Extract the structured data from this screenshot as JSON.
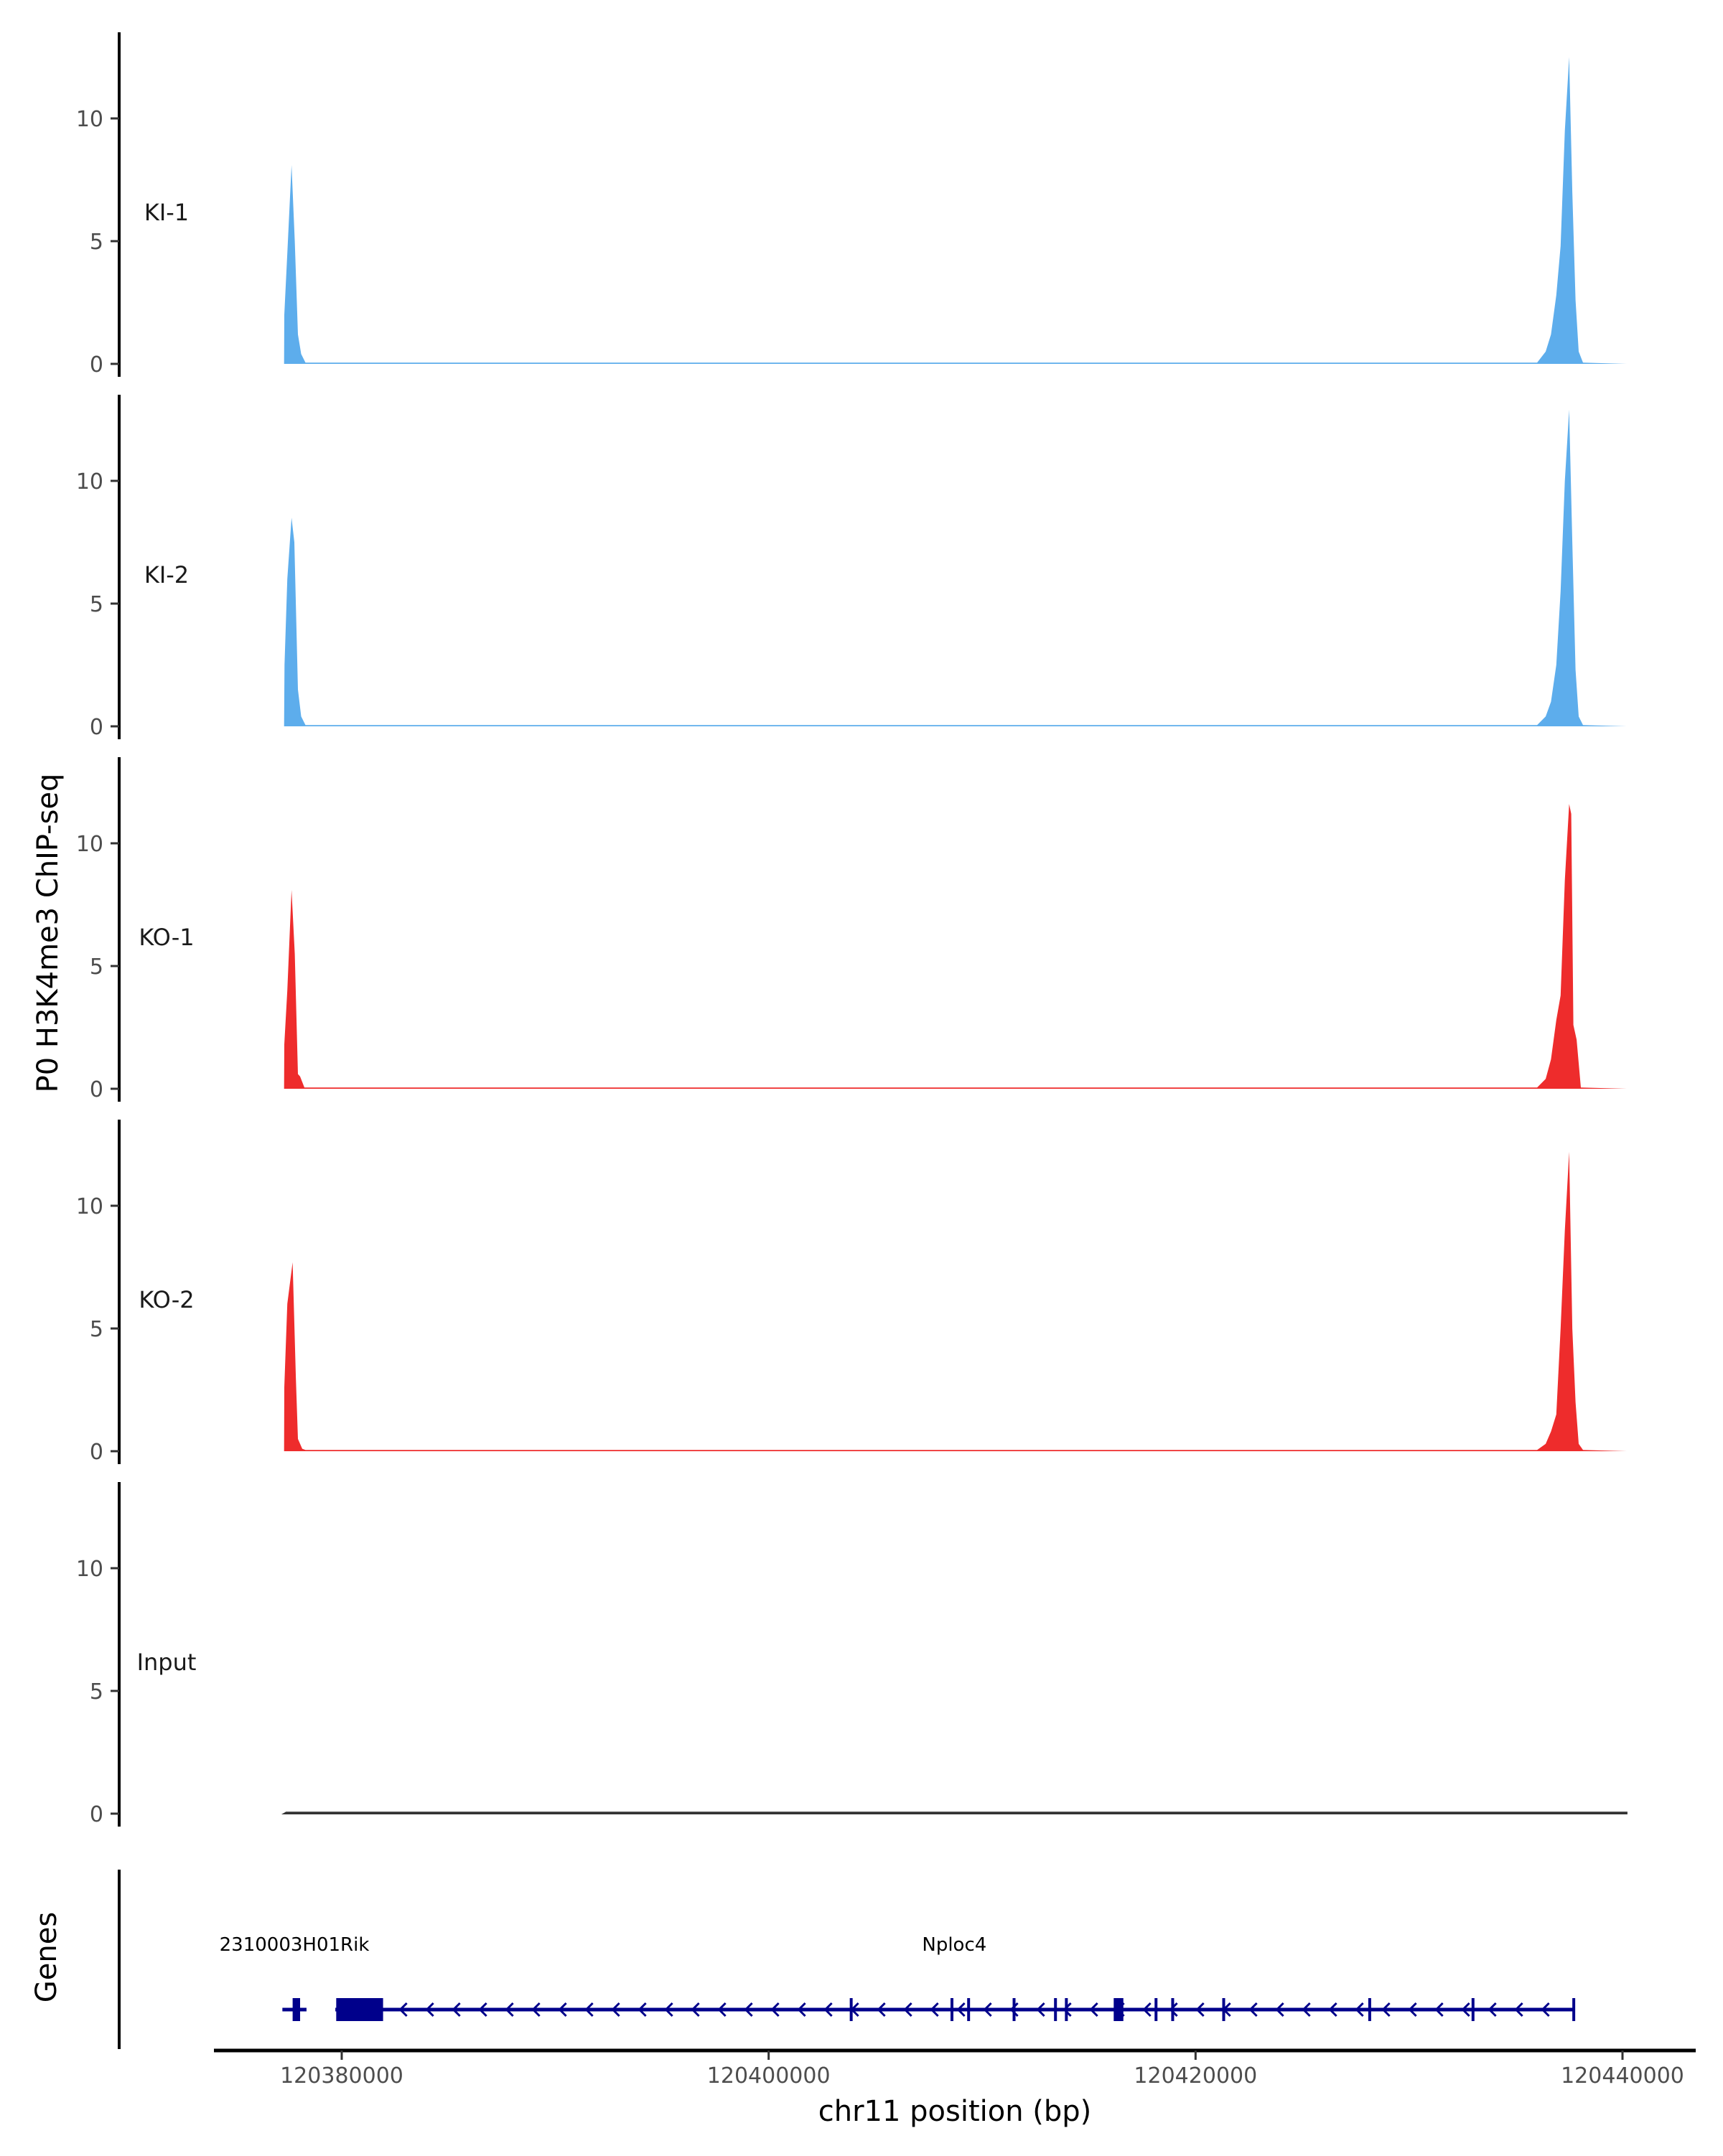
{
  "chart_data": {
    "type": "area",
    "title": "",
    "ylabel": "P0 H3K4me3 ChIP-seq",
    "xlabel": "chr11 position (bp)",
    "ylim": [
      0,
      13
    ],
    "yticks": [
      0,
      5,
      10
    ],
    "xlim": [
      120374500,
      120441500
    ],
    "xticks": [
      120380000,
      120400000,
      120420000,
      120440000
    ],
    "xtick_labels": [
      "120380000",
      "120400000",
      "120420000",
      "120440000"
    ],
    "grid": false,
    "tracks": [
      {
        "name": "KI-1",
        "color": "#5DADEC",
        "points": [
          [
            120377300,
            0
          ],
          [
            120377310,
            2.0
          ],
          [
            120377450,
            4.5
          ],
          [
            120377650,
            8.1
          ],
          [
            120377800,
            5.0
          ],
          [
            120377950,
            1.2
          ],
          [
            120378100,
            0.4
          ],
          [
            120378300,
            0.05
          ],
          [
            120436000,
            0.05
          ],
          [
            120436400,
            0.5
          ],
          [
            120436650,
            1.2
          ],
          [
            120436900,
            2.8
          ],
          [
            120437100,
            4.8
          ],
          [
            120437300,
            9.5
          ],
          [
            120437500,
            12.5
          ],
          [
            120437650,
            7.0
          ],
          [
            120437800,
            2.6
          ],
          [
            120437950,
            0.5
          ],
          [
            120438150,
            0.05
          ],
          [
            120440200,
            0
          ]
        ]
      },
      {
        "name": "KI-2",
        "color": "#5DADEC",
        "points": [
          [
            120377300,
            0
          ],
          [
            120377320,
            2.5
          ],
          [
            120377450,
            6.0
          ],
          [
            120377650,
            8.5
          ],
          [
            120377780,
            7.5
          ],
          [
            120377950,
            1.5
          ],
          [
            120378100,
            0.4
          ],
          [
            120378300,
            0.05
          ],
          [
            120436000,
            0.05
          ],
          [
            120436400,
            0.4
          ],
          [
            120436650,
            1.0
          ],
          [
            120436900,
            2.5
          ],
          [
            120437100,
            5.5
          ],
          [
            120437300,
            10.0
          ],
          [
            120437500,
            12.9
          ],
          [
            120437650,
            7.5
          ],
          [
            120437800,
            2.3
          ],
          [
            120437950,
            0.4
          ],
          [
            120438150,
            0.05
          ],
          [
            120440200,
            0
          ]
        ]
      },
      {
        "name": "KO-1",
        "color": "#EE2C2C",
        "points": [
          [
            120377300,
            0
          ],
          [
            120377310,
            1.8
          ],
          [
            120377450,
            4.0
          ],
          [
            120377650,
            8.1
          ],
          [
            120377800,
            5.5
          ],
          [
            120377950,
            0.6
          ],
          [
            120378050,
            0.5
          ],
          [
            120378250,
            0.05
          ],
          [
            120436000,
            0.05
          ],
          [
            120436400,
            0.4
          ],
          [
            120436650,
            1.2
          ],
          [
            120436900,
            2.8
          ],
          [
            120437100,
            3.8
          ],
          [
            120437300,
            8.5
          ],
          [
            120437500,
            11.6
          ],
          [
            120437600,
            11.2
          ],
          [
            120437700,
            2.6
          ],
          [
            120437850,
            2.0
          ],
          [
            120438050,
            0.05
          ],
          [
            120440200,
            0
          ]
        ]
      },
      {
        "name": "KO-2",
        "color": "#EE2C2C",
        "points": [
          [
            120377300,
            0
          ],
          [
            120377310,
            2.6
          ],
          [
            120377450,
            6.0
          ],
          [
            120377700,
            7.7
          ],
          [
            120377850,
            3.0
          ],
          [
            120377950,
            0.5
          ],
          [
            120378150,
            0.1
          ],
          [
            120378300,
            0.05
          ],
          [
            120436000,
            0.05
          ],
          [
            120436400,
            0.3
          ],
          [
            120436650,
            0.8
          ],
          [
            120436900,
            1.5
          ],
          [
            120437100,
            5.0
          ],
          [
            120437300,
            9.0
          ],
          [
            120437500,
            12.2
          ],
          [
            120437650,
            5.0
          ],
          [
            120437800,
            2.0
          ],
          [
            120437950,
            0.3
          ],
          [
            120438150,
            0.05
          ],
          [
            120440200,
            0
          ]
        ]
      },
      {
        "name": "Input",
        "color": "#333333",
        "points": [
          [
            120377300,
            0
          ],
          [
            120377400,
            0.05
          ],
          [
            120440200,
            0.05
          ],
          [
            120440200,
            0
          ]
        ]
      }
    ],
    "gene_track": {
      "label": "Genes",
      "color": "#00008B",
      "genes": [
        {
          "name": "2310003H01Rik",
          "start": 120377220,
          "end": 120378350,
          "strand": "-",
          "exons": [
            [
              120377700,
              120378050
            ]
          ]
        },
        {
          "name": "Nploc4",
          "start": 120379700,
          "end": 120437700,
          "strand": "-",
          "exons": [
            [
              120379742,
              120381937
            ],
            [
              120403800,
              120403850
            ],
            [
              120408520,
              120408570
            ],
            [
              120409300,
              120409350
            ],
            [
              120411430,
              120411480
            ],
            [
              120413370,
              120413420
            ],
            [
              120413880,
              120413930
            ],
            [
              120416165,
              120416617
            ],
            [
              120418080,
              120418130
            ],
            [
              120418860,
              120418910
            ],
            [
              120421250,
              120421300
            ],
            [
              120428090,
              120428140
            ],
            [
              120432930,
              120432980
            ],
            [
              120437650,
              120437700
            ]
          ]
        }
      ]
    }
  }
}
